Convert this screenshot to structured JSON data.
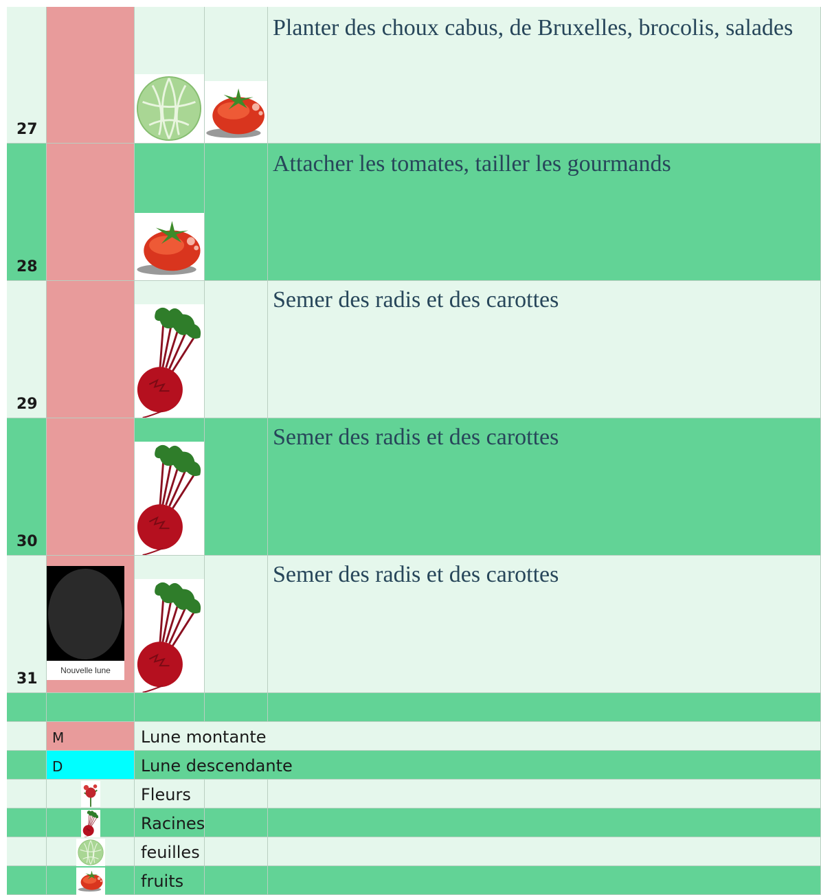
{
  "rows": [
    {
      "day": 27,
      "task": "Planter des choux cabus, de Bruxelles, brocolis, salades"
    },
    {
      "day": 28,
      "task": "Attacher les tomates, tailler les gourmands"
    },
    {
      "day": 29,
      "task": "Semer des radis et des carottes"
    },
    {
      "day": 30,
      "task": "Semer des radis et des carottes"
    },
    {
      "day": 31,
      "moon": "Nouvelle lune",
      "task": "Semer des radis et des carottes"
    }
  ],
  "legend": [
    {
      "code": "M",
      "label": "Lune montante"
    },
    {
      "code": "D",
      "label": "Lune descendante"
    },
    {
      "label": "Fleurs"
    },
    {
      "label": "Racines"
    },
    {
      "label": "feuilles"
    },
    {
      "label": "fruits"
    }
  ]
}
